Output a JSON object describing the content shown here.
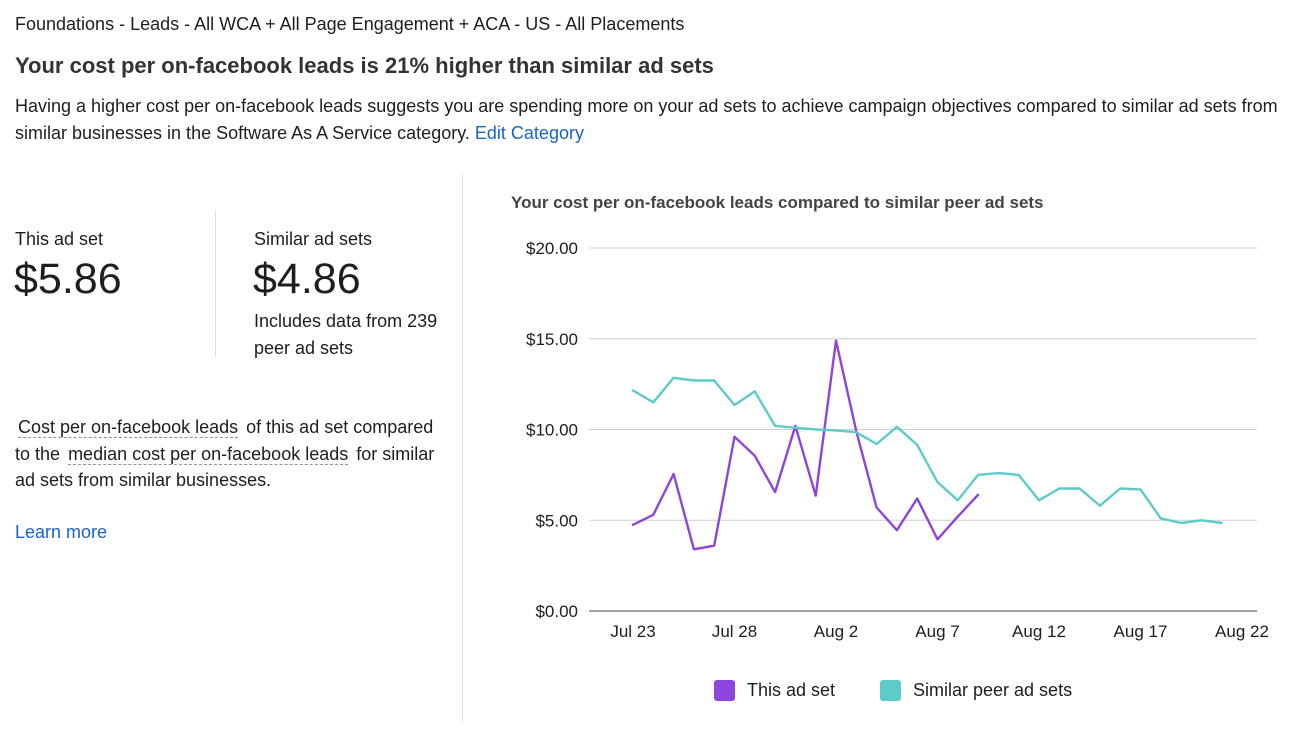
{
  "breadcrumb": "Foundations - Leads - All WCA + All Page Engagement + ACA - US - All Placements",
  "headline": "Your cost per on-facebook leads is 21% higher than similar ad sets",
  "description": {
    "text": "Having a higher cost per on-facebook leads suggests you are spending more on your ad sets to achieve campaign objectives compared to similar ad sets from similar businesses in the Software As A Service category.",
    "edit_link": "Edit Category"
  },
  "stats": {
    "this_label": "This ad set",
    "this_value": "$5.86",
    "similar_label": "Similar ad sets",
    "similar_value": "$4.86",
    "similar_note": "Includes data from 239 peer ad sets"
  },
  "explanation": {
    "term1": "Cost per on-facebook leads",
    "text1": "of this ad set compared to the",
    "term2": "median cost per on-facebook leads",
    "text2": "for similar ad sets from similar businesses.",
    "learn_more": "Learn more"
  },
  "colors": {
    "this_ad_set": "#8e44de",
    "similar": "#5ecbcb",
    "link": "#1a64c8"
  },
  "chart_data": {
    "type": "line",
    "title": "Your cost per on-facebook leads compared to similar peer ad sets",
    "xlabel": "",
    "ylabel": "",
    "ylim": [
      0,
      20
    ],
    "y_ticks": [
      "$0.00",
      "$5.00",
      "$10.00",
      "$15.00",
      "$20.00"
    ],
    "y_tick_values": [
      0,
      5,
      10,
      15,
      20
    ],
    "x_ticks": [
      "Jul 23",
      "Jul 28",
      "Aug 2",
      "Aug 7",
      "Aug 12",
      "Aug 17",
      "Aug 22"
    ],
    "x": [
      "Jul 23",
      "Jul 24",
      "Jul 25",
      "Jul 26",
      "Jul 27",
      "Jul 28",
      "Jul 29",
      "Jul 30",
      "Jul 31",
      "Aug 1",
      "Aug 2",
      "Aug 3",
      "Aug 4",
      "Aug 5",
      "Aug 6",
      "Aug 7",
      "Aug 8",
      "Aug 9",
      "Aug 10",
      "Aug 11",
      "Aug 12",
      "Aug 13",
      "Aug 14",
      "Aug 15",
      "Aug 16",
      "Aug 17",
      "Aug 18",
      "Aug 19",
      "Aug 20",
      "Aug 21"
    ],
    "grid": true,
    "legend_position": "bottom",
    "series": [
      {
        "name": "This ad set",
        "color": "#8e44de",
        "values": [
          4.75,
          5.3,
          7.55,
          3.4,
          3.6,
          9.6,
          8.55,
          6.55,
          10.2,
          6.35,
          14.9,
          9.9,
          5.7,
          4.45,
          6.2,
          3.95,
          5.2,
          6.4,
          null,
          null,
          null,
          null,
          null,
          null,
          null,
          null,
          null,
          null,
          null,
          null
        ]
      },
      {
        "name": "Similar peer ad sets",
        "color": "#5ecbcb",
        "values": [
          12.15,
          11.5,
          12.85,
          12.7,
          12.7,
          11.35,
          12.1,
          10.2,
          10.1,
          10.0,
          9.95,
          9.85,
          9.2,
          10.15,
          9.15,
          7.1,
          6.1,
          7.5,
          7.6,
          7.5,
          6.1,
          6.75,
          6.75,
          5.8,
          6.75,
          6.7,
          5.1,
          4.85,
          5.0,
          4.85
        ]
      }
    ]
  }
}
